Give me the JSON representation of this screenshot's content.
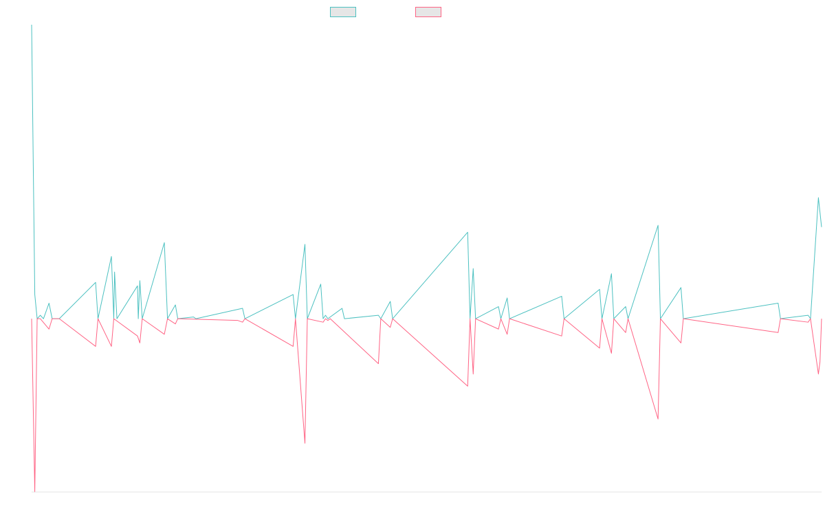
{
  "chart_data": {
    "type": "line",
    "title": "",
    "xlabel": "",
    "ylabel": "",
    "legend_position": "top",
    "grid": false,
    "ylim": [
      -100,
      170
    ],
    "xlim": [
      0,
      1000
    ],
    "series": [
      {
        "name": "",
        "color": "#4bc0c0",
        "points": [
          [
            0,
            170
          ],
          [
            4,
            14
          ],
          [
            7,
            0
          ],
          [
            11,
            2
          ],
          [
            15,
            0
          ],
          [
            22,
            9
          ],
          [
            26,
            0
          ],
          [
            35,
            0
          ],
          [
            81,
            21
          ],
          [
            84,
            0
          ],
          [
            101,
            36
          ],
          [
            104,
            0
          ],
          [
            105,
            27
          ],
          [
            108,
            0
          ],
          [
            134,
            19
          ],
          [
            135,
            0
          ],
          [
            137,
            22
          ],
          [
            140,
            0
          ],
          [
            168,
            44
          ],
          [
            172,
            0
          ],
          [
            182,
            8
          ],
          [
            185,
            0
          ],
          [
            205,
            1
          ],
          [
            208,
            0
          ],
          [
            267,
            6
          ],
          [
            270,
            0
          ],
          [
            331,
            14
          ],
          [
            334,
            0
          ],
          [
            346,
            43
          ],
          [
            349,
            0
          ],
          [
            366,
            20
          ],
          [
            369,
            0
          ],
          [
            372,
            2
          ],
          [
            375,
            0
          ],
          [
            393,
            6
          ],
          [
            396,
            0
          ],
          [
            439,
            2
          ],
          [
            442,
            0
          ],
          [
            454,
            10
          ],
          [
            457,
            0
          ],
          [
            552,
            50
          ],
          [
            555,
            0
          ],
          [
            559,
            29
          ],
          [
            562,
            0
          ],
          [
            591,
            7
          ],
          [
            594,
            0
          ],
          [
            602,
            12
          ],
          [
            605,
            0
          ],
          [
            671,
            13
          ],
          [
            674,
            0
          ],
          [
            719,
            17
          ],
          [
            722,
            0
          ],
          [
            734,
            26
          ],
          [
            737,
            0
          ],
          [
            752,
            7
          ],
          [
            755,
            0
          ],
          [
            793,
            54
          ],
          [
            796,
            0
          ],
          [
            822,
            18
          ],
          [
            825,
            0
          ],
          [
            945,
            9
          ],
          [
            948,
            0
          ],
          [
            983,
            2
          ],
          [
            986,
            0
          ],
          [
            996,
            70
          ],
          [
            1000,
            53
          ]
        ]
      },
      {
        "name": "",
        "color": "#ff6384",
        "points": [
          [
            0,
            0
          ],
          [
            4,
            -100
          ],
          [
            7,
            0
          ],
          [
            11,
            0
          ],
          [
            22,
            -6
          ],
          [
            26,
            0
          ],
          [
            35,
            0
          ],
          [
            81,
            -16
          ],
          [
            84,
            0
          ],
          [
            101,
            -16
          ],
          [
            104,
            0
          ],
          [
            134,
            -10
          ],
          [
            137,
            -14
          ],
          [
            140,
            0
          ],
          [
            168,
            -9
          ],
          [
            172,
            0
          ],
          [
            182,
            -3
          ],
          [
            185,
            0
          ],
          [
            261,
            -1
          ],
          [
            267,
            -2
          ],
          [
            270,
            0
          ],
          [
            331,
            -16
          ],
          [
            334,
            0
          ],
          [
            346,
            -72
          ],
          [
            349,
            0
          ],
          [
            369,
            -2
          ],
          [
            372,
            0
          ],
          [
            375,
            -1
          ],
          [
            378,
            0
          ],
          [
            439,
            -26
          ],
          [
            442,
            0
          ],
          [
            454,
            -5
          ],
          [
            457,
            0
          ],
          [
            552,
            -39
          ],
          [
            555,
            0
          ],
          [
            559,
            -32
          ],
          [
            562,
            0
          ],
          [
            591,
            -6
          ],
          [
            594,
            0
          ],
          [
            602,
            -9
          ],
          [
            605,
            0
          ],
          [
            671,
            -10
          ],
          [
            674,
            0
          ],
          [
            719,
            -17
          ],
          [
            722,
            0
          ],
          [
            734,
            -20
          ],
          [
            737,
            0
          ],
          [
            752,
            -8
          ],
          [
            755,
            0
          ],
          [
            793,
            -58
          ],
          [
            796,
            0
          ],
          [
            822,
            -14
          ],
          [
            825,
            0
          ],
          [
            945,
            -8
          ],
          [
            948,
            0
          ],
          [
            983,
            -2
          ],
          [
            986,
            0
          ],
          [
            996,
            -32
          ],
          [
            998,
            -25
          ],
          [
            1000,
            0
          ]
        ]
      }
    ]
  }
}
